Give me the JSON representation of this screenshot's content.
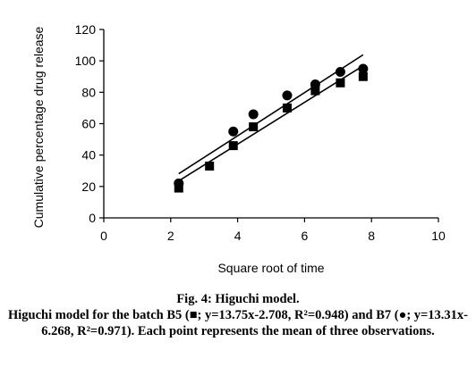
{
  "chart_data": {
    "type": "scatter",
    "title": "",
    "xlabel": "Square root of time",
    "ylabel": "Cumulative percentage drug release",
    "xlim": [
      0,
      10
    ],
    "ylim": [
      0,
      120
    ],
    "x_ticks": [
      "0",
      "2",
      "4",
      "6",
      "8",
      "10"
    ],
    "y_ticks": [
      "0",
      "20",
      "40",
      "60",
      "80",
      "100",
      "120"
    ],
    "grid": false,
    "legend": "none",
    "series": [
      {
        "marker": "square",
        "color": "#000000",
        "x": [
          2.24,
          3.16,
          3.87,
          4.47,
          5.48,
          6.32,
          7.07,
          7.75
        ],
        "y": [
          19,
          33,
          46,
          58,
          70,
          81,
          86,
          90
        ],
        "trendline": {
          "slope": 13.75,
          "intercept": -2.708,
          "x_range": [
            2.24,
            7.75
          ]
        }
      },
      {
        "marker": "circle",
        "color": "#000000",
        "x": [
          2.24,
          3.87,
          4.47,
          5.48,
          6.32,
          7.07,
          7.75
        ],
        "y": [
          22,
          55,
          66,
          78,
          85,
          93,
          95
        ],
        "trendline": {
          "slope": 13.31,
          "intercept": -6.268,
          "x_range": [
            2.24,
            7.75
          ]
        }
      }
    ]
  },
  "caption": {
    "title": "Fig. 4: Higuchi model.",
    "text": "Higuchi model for the batch B5 (■; y=13.75x-2.708, R²=0.948) and B7 (●;  y=13.31x-6.268, R²=0.971). Each point represents the mean of three observations."
  }
}
